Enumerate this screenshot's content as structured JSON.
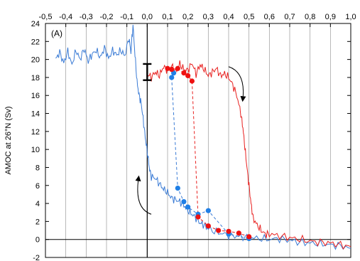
{
  "chart_data": {
    "type": "line",
    "panel_label": "(A)",
    "ylabel": "AMOC at 26°N (Sv)",
    "xlabel": "",
    "xlim": [
      -0.5,
      1.0
    ],
    "ylim": [
      -2,
      24
    ],
    "x_ticks": [
      "-0,5",
      "-0,4",
      "-0,3",
      "-0,2",
      "-0,1",
      "0,0",
      "0,1",
      "0,2",
      "0,3",
      "0,4",
      "0,5",
      "0,6",
      "0,7",
      "0,8",
      "0,9",
      "1,0"
    ],
    "y_ticks": [
      "-2",
      "0",
      "2",
      "4",
      "6",
      "8",
      "10",
      "12",
      "14",
      "16",
      "18",
      "20",
      "22",
      "24"
    ],
    "grid": "vertical",
    "colors": {
      "blue": "#3a7bd5",
      "red": "#e8201f",
      "marker_blue": "#1f7fe6",
      "marker_red": "#ee1111"
    },
    "series": [
      {
        "color": "blue",
        "style": "solid",
        "x": [
          -0.45,
          -0.43,
          -0.41,
          -0.39,
          -0.37,
          -0.35,
          -0.33,
          -0.31,
          -0.29,
          -0.27,
          -0.25,
          -0.23,
          -0.21,
          -0.19,
          -0.17,
          -0.15,
          -0.13,
          -0.11,
          -0.09,
          -0.08,
          -0.07,
          -0.06,
          -0.05,
          -0.04,
          -0.03,
          -0.02,
          -0.01,
          0.0,
          0.01,
          0.02,
          0.04,
          0.06,
          0.08,
          0.1,
          0.12,
          0.14,
          0.16,
          0.18,
          0.2,
          0.22,
          0.24,
          0.26,
          0.28,
          0.3,
          0.34,
          0.38,
          0.42,
          0.46,
          0.5,
          0.55,
          0.6,
          0.65,
          0.7,
          0.75,
          0.8,
          0.85,
          0.9,
          0.95,
          1.0
        ],
        "y": [
          20.0,
          20.8,
          19.6,
          20.9,
          19.4,
          21.0,
          20.0,
          21.2,
          19.8,
          20.6,
          21.0,
          20.2,
          21.3,
          20.1,
          21.0,
          20.5,
          21.0,
          20.4,
          22.4,
          20.8,
          23.8,
          20.5,
          17.5,
          16.0,
          15.2,
          13.4,
          11.4,
          9.8,
          8.0,
          7.0,
          6.8,
          6.2,
          5.6,
          5.2,
          4.6,
          4.4,
          4.2,
          3.8,
          3.2,
          2.8,
          2.4,
          1.8,
          1.6,
          1.2,
          0.8,
          0.6,
          0.4,
          0.3,
          0.2,
          0.1,
          0.0,
          0.1,
          -0.1,
          -0.3,
          -0.4,
          -0.5,
          -0.6,
          -0.7,
          -1.0
        ]
      },
      {
        "color": "red",
        "style": "solid",
        "x": [
          0.0,
          0.02,
          0.04,
          0.06,
          0.08,
          0.1,
          0.12,
          0.14,
          0.16,
          0.18,
          0.2,
          0.22,
          0.24,
          0.26,
          0.28,
          0.3,
          0.32,
          0.34,
          0.36,
          0.38,
          0.4,
          0.42,
          0.44,
          0.46,
          0.47,
          0.48,
          0.49,
          0.5,
          0.51,
          0.52,
          0.54,
          0.56,
          0.58,
          0.6,
          0.65,
          0.7,
          0.75,
          0.8,
          0.85,
          0.9,
          0.95,
          1.0
        ],
        "y": [
          18.4,
          18.0,
          18.6,
          18.2,
          19.2,
          18.8,
          19.3,
          18.6,
          19.5,
          18.9,
          18.8,
          19.6,
          18.4,
          19.4,
          18.9,
          18.2,
          18.6,
          19.0,
          18.2,
          18.4,
          18.0,
          17.2,
          16.0,
          14.0,
          12.4,
          10.2,
          8.0,
          6.0,
          4.0,
          2.4,
          1.6,
          1.0,
          0.6,
          0.6,
          0.4,
          0.2,
          0.0,
          -0.2,
          -0.3,
          -0.4,
          -0.6,
          -0.8
        ]
      },
      {
        "color": "blue",
        "style": "dashed",
        "markers": true,
        "x": [
          0.13,
          0.12,
          0.15,
          0.18,
          0.2,
          0.25,
          0.3,
          0.4,
          0.5
        ],
        "y": [
          18.5,
          18.0,
          5.7,
          4.2,
          3.6,
          2.8,
          3.2,
          0.6,
          0.1
        ]
      },
      {
        "color": "red",
        "style": "dashed",
        "markers": true,
        "x": [
          0.1,
          0.12,
          0.15,
          0.18,
          0.2,
          0.22,
          0.25,
          0.3,
          0.35,
          0.4,
          0.45,
          0.5
        ],
        "y": [
          19.0,
          18.9,
          19.0,
          18.5,
          18.2,
          17.6,
          2.5,
          1.5,
          1.0,
          0.9,
          0.7,
          0.3
        ]
      }
    ],
    "error_bar": {
      "x": 0.0,
      "y_low": 17.7,
      "y_high": 19.5
    },
    "annotations": [
      {
        "type": "curved-arrow",
        "color": "#000",
        "direction": "down",
        "near_x": 0.42,
        "near_y": 17
      },
      {
        "type": "curved-arrow",
        "color": "#000",
        "direction": "up",
        "near_x": -0.05,
        "near_y": 5
      }
    ]
  }
}
